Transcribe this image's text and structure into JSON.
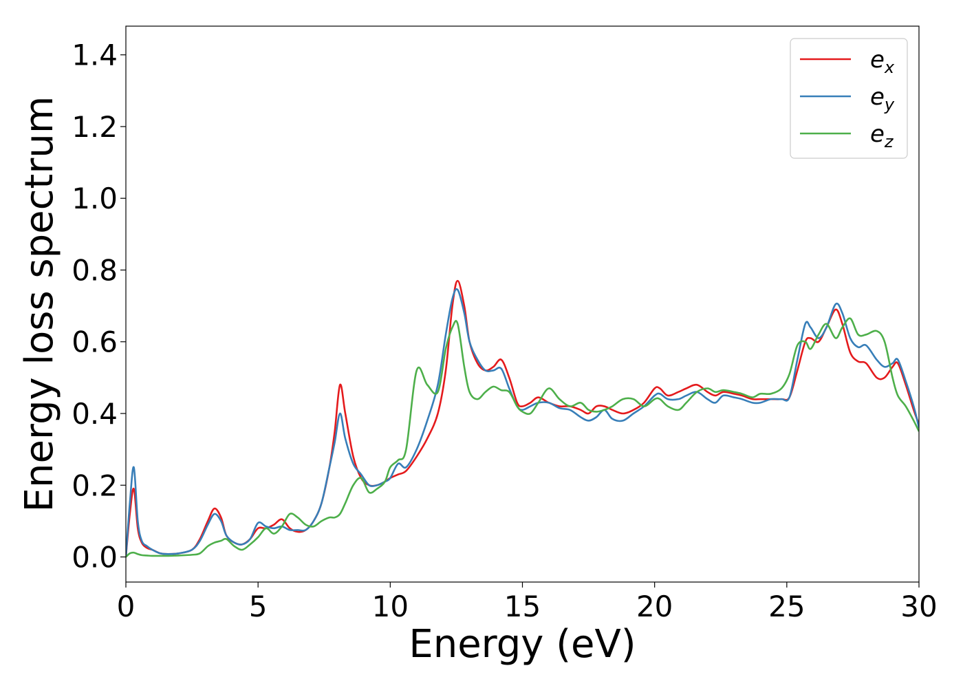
{
  "chart_data": {
    "type": "line",
    "title": "",
    "xlabel": "Energy (eV)",
    "ylabel": "Energy loss spectrum",
    "xlim": [
      0,
      30
    ],
    "ylim": [
      -0.07,
      1.48
    ],
    "xticks": [
      0,
      5,
      10,
      15,
      20,
      25,
      30
    ],
    "xtick_labels": [
      "0",
      "5",
      "10",
      "15",
      "20",
      "25",
      "30"
    ],
    "yticks": [
      0.0,
      0.2,
      0.4,
      0.6,
      0.8,
      1.0,
      1.2,
      1.4
    ],
    "ytick_labels": [
      "0.0",
      "0.2",
      "0.4",
      "0.6",
      "0.8",
      "1.0",
      "1.2",
      "1.4"
    ],
    "grid": false,
    "legend_position": "top-right",
    "series": [
      {
        "name": "e_x",
        "label_base": "e",
        "label_sub": "x",
        "color": "#e41a1c",
        "x": [
          0,
          0.15,
          0.3,
          0.45,
          0.6,
          0.8,
          1.0,
          1.3,
          1.6,
          2.0,
          2.5,
          2.8,
          3.1,
          3.35,
          3.6,
          3.8,
          4.1,
          4.4,
          4.7,
          5.0,
          5.3,
          5.6,
          5.9,
          6.2,
          6.5,
          6.8,
          7.1,
          7.4,
          7.7,
          7.9,
          8.1,
          8.3,
          8.6,
          8.9,
          9.2,
          9.5,
          9.8,
          10.0,
          10.3,
          10.6,
          11.0,
          11.4,
          11.8,
          12.1,
          12.35,
          12.55,
          12.8,
          13.0,
          13.3,
          13.6,
          13.9,
          14.2,
          14.5,
          14.8,
          15.0,
          15.3,
          15.6,
          16.0,
          16.4,
          16.8,
          17.2,
          17.5,
          17.8,
          18.1,
          18.4,
          18.8,
          19.2,
          19.6,
          20.0,
          20.2,
          20.5,
          20.9,
          21.2,
          21.6,
          22.0,
          22.3,
          22.6,
          23.0,
          23.3,
          23.7,
          24.0,
          24.4,
          24.8,
          25.1,
          25.4,
          25.7,
          25.9,
          26.2,
          26.5,
          26.85,
          27.1,
          27.4,
          27.7,
          28.0,
          28.4,
          28.7,
          29.0,
          29.2,
          29.5,
          29.8,
          30.0
        ],
        "y": [
          0.0,
          0.12,
          0.19,
          0.08,
          0.04,
          0.025,
          0.02,
          0.01,
          0.008,
          0.01,
          0.02,
          0.05,
          0.1,
          0.135,
          0.11,
          0.06,
          0.04,
          0.035,
          0.05,
          0.08,
          0.08,
          0.09,
          0.105,
          0.08,
          0.07,
          0.075,
          0.1,
          0.15,
          0.25,
          0.35,
          0.48,
          0.4,
          0.28,
          0.22,
          0.2,
          0.2,
          0.21,
          0.22,
          0.23,
          0.24,
          0.28,
          0.33,
          0.4,
          0.52,
          0.7,
          0.77,
          0.7,
          0.6,
          0.54,
          0.52,
          0.53,
          0.55,
          0.5,
          0.43,
          0.42,
          0.43,
          0.445,
          0.43,
          0.42,
          0.42,
          0.41,
          0.4,
          0.42,
          0.42,
          0.41,
          0.4,
          0.41,
          0.43,
          0.47,
          0.47,
          0.45,
          0.46,
          0.47,
          0.48,
          0.46,
          0.45,
          0.46,
          0.455,
          0.45,
          0.44,
          0.44,
          0.44,
          0.44,
          0.445,
          0.52,
          0.6,
          0.61,
          0.6,
          0.64,
          0.69,
          0.65,
          0.57,
          0.545,
          0.54,
          0.5,
          0.5,
          0.53,
          0.54,
          0.48,
          0.41,
          0.37
        ]
      },
      {
        "name": "e_y",
        "label_base": "e",
        "label_sub": "y",
        "color": "#377eb8",
        "x": [
          0,
          0.15,
          0.3,
          0.45,
          0.6,
          0.8,
          1.0,
          1.3,
          1.6,
          2.0,
          2.5,
          2.8,
          3.1,
          3.35,
          3.6,
          3.8,
          4.1,
          4.4,
          4.7,
          5.0,
          5.3,
          5.6,
          5.9,
          6.2,
          6.5,
          6.8,
          7.1,
          7.4,
          7.7,
          7.9,
          8.1,
          8.3,
          8.6,
          8.9,
          9.2,
          9.5,
          9.8,
          10.0,
          10.3,
          10.6,
          11.0,
          11.4,
          11.8,
          12.1,
          12.35,
          12.55,
          12.8,
          13.0,
          13.3,
          13.6,
          13.9,
          14.2,
          14.5,
          14.8,
          15.0,
          15.3,
          15.6,
          16.0,
          16.4,
          16.8,
          17.2,
          17.5,
          17.8,
          18.1,
          18.4,
          18.8,
          19.2,
          19.6,
          20.0,
          20.2,
          20.5,
          20.9,
          21.2,
          21.6,
          22.0,
          22.3,
          22.6,
          23.0,
          23.3,
          23.7,
          24.0,
          24.4,
          24.8,
          25.1,
          25.4,
          25.7,
          25.9,
          26.2,
          26.5,
          26.85,
          27.1,
          27.4,
          27.7,
          28.0,
          28.4,
          28.7,
          29.0,
          29.2,
          29.5,
          29.8,
          30.0
        ],
        "y": [
          0.0,
          0.15,
          0.25,
          0.1,
          0.045,
          0.03,
          0.02,
          0.01,
          0.008,
          0.01,
          0.02,
          0.045,
          0.09,
          0.12,
          0.1,
          0.06,
          0.04,
          0.035,
          0.05,
          0.095,
          0.085,
          0.08,
          0.085,
          0.075,
          0.075,
          0.075,
          0.1,
          0.15,
          0.25,
          0.32,
          0.4,
          0.33,
          0.26,
          0.23,
          0.2,
          0.2,
          0.21,
          0.22,
          0.26,
          0.25,
          0.3,
          0.38,
          0.48,
          0.62,
          0.72,
          0.745,
          0.68,
          0.6,
          0.55,
          0.52,
          0.52,
          0.525,
          0.47,
          0.42,
          0.41,
          0.42,
          0.43,
          0.43,
          0.415,
          0.41,
          0.39,
          0.38,
          0.39,
          0.41,
          0.385,
          0.38,
          0.4,
          0.42,
          0.45,
          0.455,
          0.44,
          0.44,
          0.45,
          0.46,
          0.44,
          0.43,
          0.45,
          0.445,
          0.44,
          0.43,
          0.43,
          0.44,
          0.44,
          0.445,
          0.55,
          0.65,
          0.64,
          0.61,
          0.64,
          0.705,
          0.68,
          0.61,
          0.585,
          0.59,
          0.55,
          0.53,
          0.54,
          0.55,
          0.49,
          0.42,
          0.36
        ]
      },
      {
        "name": "e_z",
        "label_base": "e",
        "label_sub": "z",
        "color": "#4daf4a",
        "x": [
          0,
          0.15,
          0.3,
          0.45,
          0.6,
          0.8,
          1.0,
          1.3,
          1.6,
          2.0,
          2.5,
          2.8,
          3.1,
          3.35,
          3.6,
          3.8,
          4.1,
          4.4,
          4.7,
          5.0,
          5.3,
          5.6,
          5.9,
          6.2,
          6.5,
          6.8,
          7.1,
          7.4,
          7.7,
          7.9,
          8.1,
          8.3,
          8.6,
          8.9,
          9.2,
          9.5,
          9.8,
          10.0,
          10.3,
          10.6,
          11.0,
          11.4,
          11.8,
          12.1,
          12.35,
          12.55,
          12.8,
          13.0,
          13.3,
          13.6,
          13.9,
          14.2,
          14.5,
          14.8,
          15.0,
          15.3,
          15.6,
          16.0,
          16.4,
          16.8,
          17.2,
          17.5,
          17.8,
          18.1,
          18.4,
          18.8,
          19.2,
          19.6,
          20.0,
          20.2,
          20.5,
          20.9,
          21.2,
          21.6,
          22.0,
          22.3,
          22.6,
          23.0,
          23.3,
          23.7,
          24.0,
          24.4,
          24.8,
          25.1,
          25.4,
          25.7,
          25.9,
          26.2,
          26.5,
          26.85,
          27.1,
          27.4,
          27.7,
          28.0,
          28.4,
          28.7,
          29.0,
          29.2,
          29.5,
          29.8,
          30.0
        ],
        "y": [
          0.0,
          0.01,
          0.012,
          0.008,
          0.005,
          0.004,
          0.003,
          0.003,
          0.003,
          0.004,
          0.006,
          0.01,
          0.03,
          0.04,
          0.045,
          0.05,
          0.03,
          0.02,
          0.035,
          0.055,
          0.08,
          0.065,
          0.085,
          0.12,
          0.11,
          0.09,
          0.085,
          0.1,
          0.11,
          0.11,
          0.12,
          0.15,
          0.2,
          0.22,
          0.18,
          0.19,
          0.21,
          0.25,
          0.27,
          0.3,
          0.52,
          0.48,
          0.46,
          0.58,
          0.64,
          0.65,
          0.53,
          0.46,
          0.44,
          0.46,
          0.475,
          0.465,
          0.46,
          0.42,
          0.405,
          0.4,
          0.43,
          0.47,
          0.44,
          0.42,
          0.43,
          0.41,
          0.405,
          0.41,
          0.42,
          0.44,
          0.44,
          0.42,
          0.44,
          0.44,
          0.42,
          0.41,
          0.43,
          0.46,
          0.47,
          0.46,
          0.465,
          0.46,
          0.455,
          0.445,
          0.455,
          0.455,
          0.47,
          0.51,
          0.59,
          0.6,
          0.58,
          0.62,
          0.65,
          0.61,
          0.64,
          0.665,
          0.62,
          0.62,
          0.63,
          0.6,
          0.5,
          0.45,
          0.42,
          0.38,
          0.35
        ]
      }
    ]
  }
}
